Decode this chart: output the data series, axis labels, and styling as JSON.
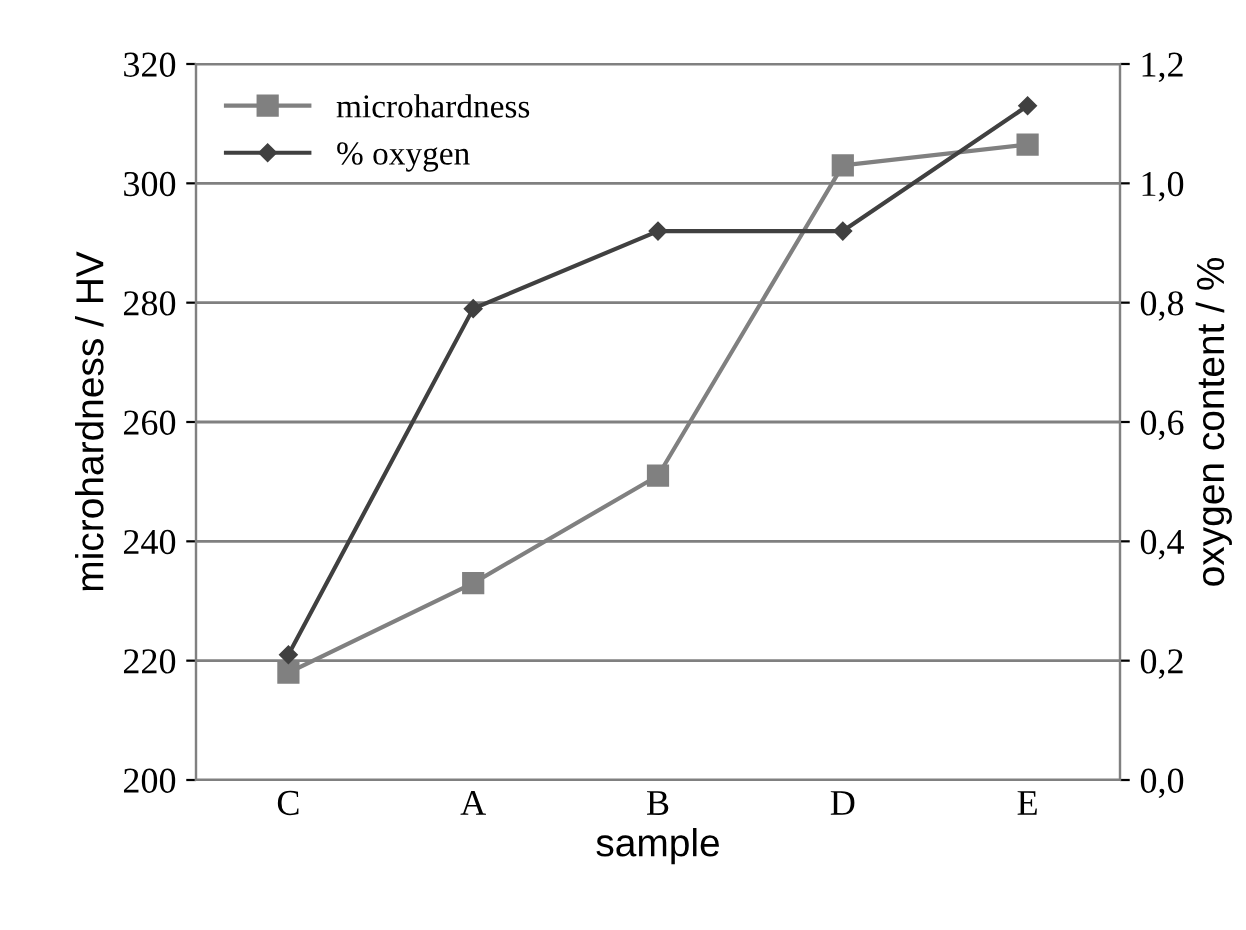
{
  "chart_data": {
    "type": "line",
    "xlabel": "sample",
    "ylabel": "microhardness / HV",
    "y2label": "oxygen content / %",
    "categories": [
      "C",
      "A",
      "B",
      "D",
      "E"
    ],
    "series": [
      {
        "name": "microhardness",
        "color": "#808080",
        "values": [
          218,
          233,
          251,
          303,
          306.5
        ],
        "marker": "square"
      },
      {
        "name": "% oxygen",
        "color": "#404040",
        "values": [
          0.21,
          0.79,
          0.92,
          0.92,
          1.13
        ],
        "axis": "y2",
        "marker": "diamond"
      }
    ],
    "ylim": [
      200,
      320
    ],
    "yticks": [
      200,
      220,
      240,
      260,
      280,
      300,
      320
    ],
    "y2lim": [
      0,
      1.2
    ],
    "y2ticks": [
      {
        "value": 0,
        "label": "0,0"
      },
      {
        "value": 0.2,
        "label": "0,2"
      },
      {
        "value": 0.4,
        "label": "0,4"
      },
      {
        "value": 0.6,
        "label": "0,6"
      },
      {
        "value": 0.8,
        "label": "0,8"
      },
      {
        "value": 1.0,
        "label": "1,0"
      },
      {
        "value": 1.2,
        "label": "1,2"
      }
    ],
    "grid": "y",
    "legend": "top left",
    "line_style": "solid"
  }
}
